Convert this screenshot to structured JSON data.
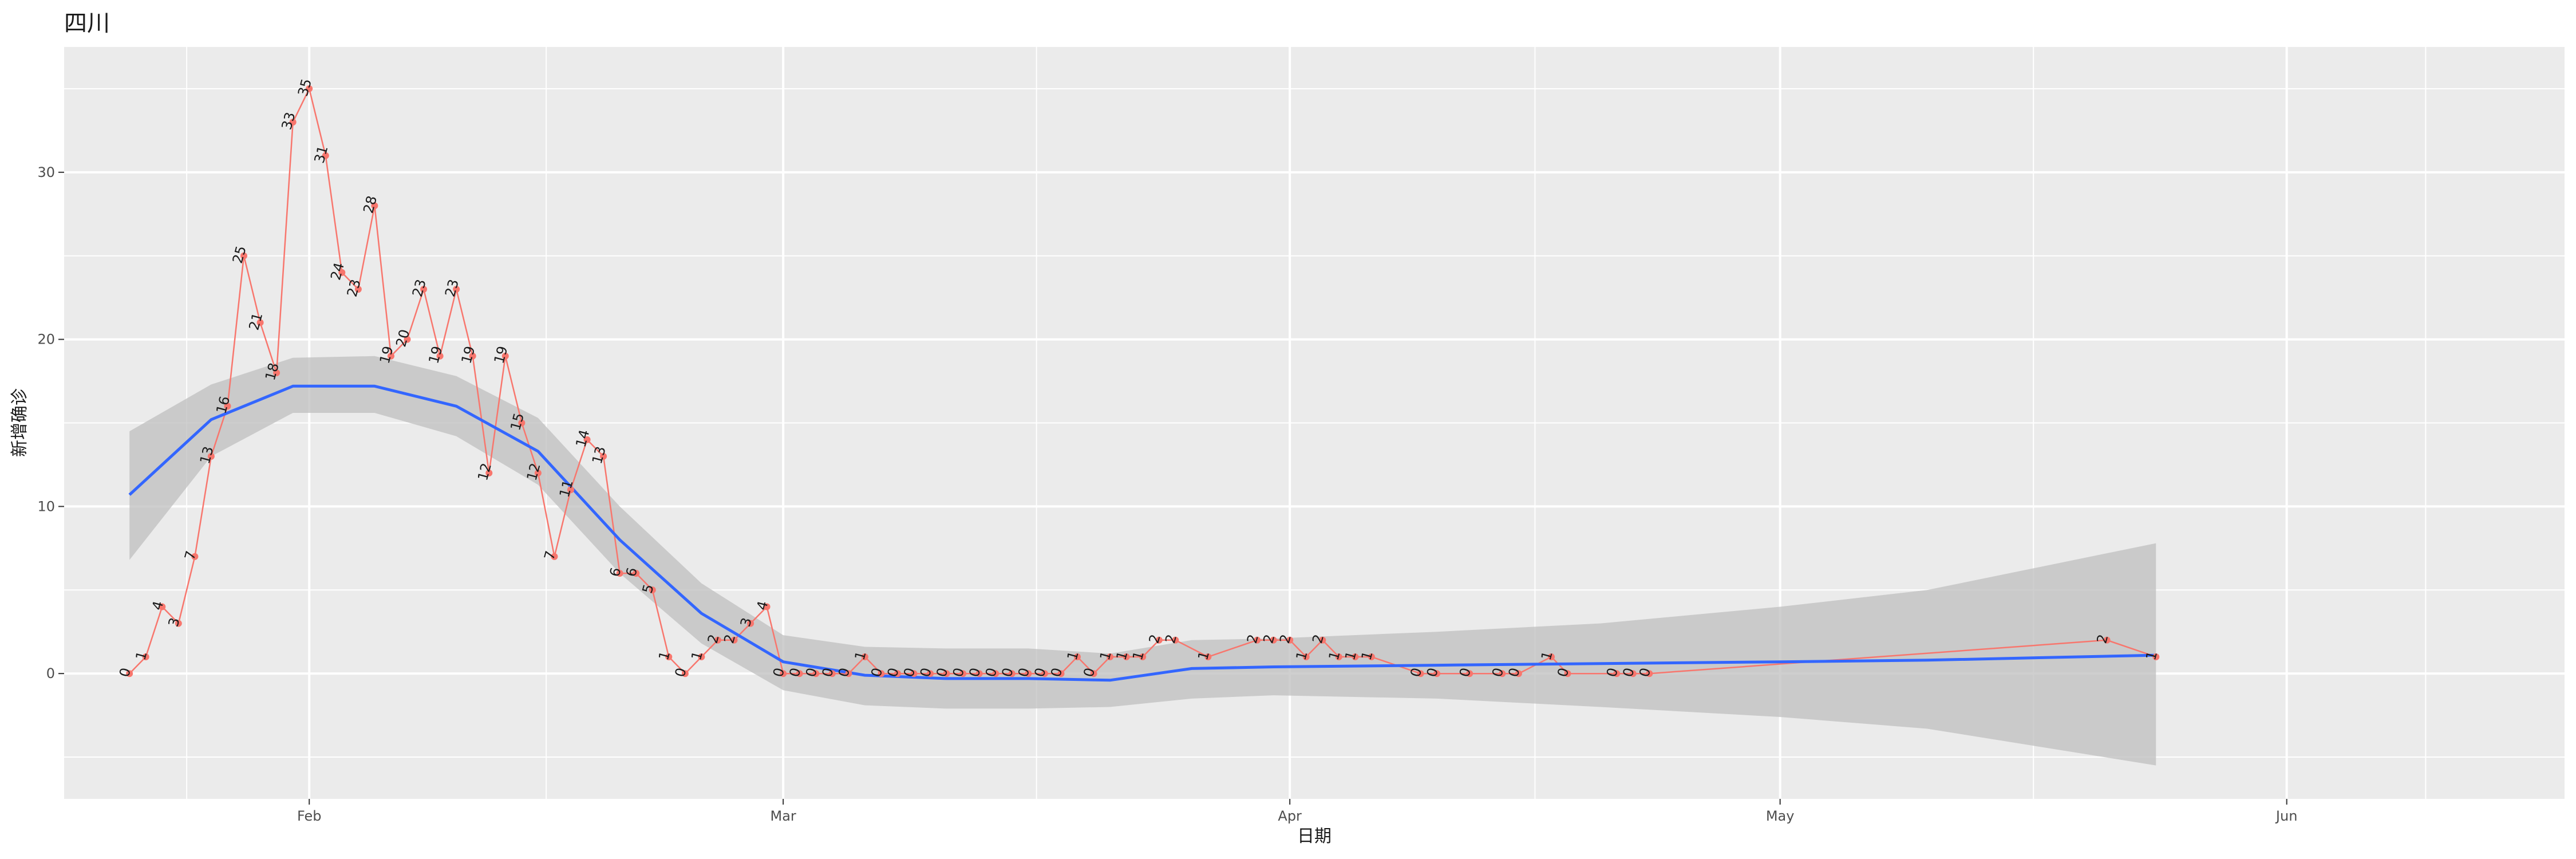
{
  "chart_data": {
    "type": "line",
    "title": "四川",
    "xlabel": "日期",
    "ylabel": "新增确诊",
    "x_ticks": [
      {
        "label": "Feb",
        "date": "2020-02-01"
      },
      {
        "label": "Mar",
        "date": "2020-03-01"
      },
      {
        "label": "Apr",
        "date": "2020-04-01"
      },
      {
        "label": "May",
        "date": "2020-05-01"
      },
      {
        "label": "Jun",
        "date": "2020-06-01"
      }
    ],
    "xlim": [
      "2020-01-17",
      "2020-06-18"
    ],
    "ylim": [
      -7.5,
      37.5
    ],
    "y_ticks": [
      0,
      10,
      20,
      30
    ],
    "grid": true,
    "colors": {
      "panel": "#EBEBEB",
      "grid": "#FFFFFF",
      "line": "#F8766D",
      "smooth": "#3366FF",
      "ribbon": "#BFBFBF"
    },
    "series": [
      {
        "x": [
          "2020-01-21",
          "2020-01-22",
          "2020-01-23",
          "2020-01-24",
          "2020-01-25",
          "2020-01-26",
          "2020-01-27",
          "2020-01-28",
          "2020-01-29",
          "2020-01-30",
          "2020-01-31",
          "2020-02-01",
          "2020-02-02",
          "2020-02-03",
          "2020-02-04",
          "2020-02-05",
          "2020-02-06",
          "2020-02-07",
          "2020-02-08",
          "2020-02-09",
          "2020-02-10",
          "2020-02-11",
          "2020-02-12",
          "2020-02-13",
          "2020-02-14",
          "2020-02-15",
          "2020-02-16",
          "2020-02-17",
          "2020-02-18",
          "2020-02-19",
          "2020-02-20",
          "2020-02-21",
          "2020-02-22",
          "2020-02-23",
          "2020-02-24",
          "2020-02-25",
          "2020-02-26",
          "2020-02-27",
          "2020-02-28",
          "2020-02-29",
          "2020-03-01",
          "2020-03-02",
          "2020-03-03",
          "2020-03-04",
          "2020-03-05",
          "2020-03-06",
          "2020-03-07",
          "2020-03-08",
          "2020-03-09",
          "2020-03-10",
          "2020-03-11",
          "2020-03-12",
          "2020-03-13",
          "2020-03-14",
          "2020-03-15",
          "2020-03-16",
          "2020-03-17",
          "2020-03-18",
          "2020-03-19",
          "2020-03-20",
          "2020-03-21",
          "2020-03-22",
          "2020-03-23",
          "2020-03-24",
          "2020-03-25",
          "2020-03-27",
          "2020-03-30",
          "2020-03-31",
          "2020-04-01",
          "2020-04-02",
          "2020-04-03",
          "2020-04-04",
          "2020-04-05",
          "2020-04-06",
          "2020-04-09",
          "2020-04-10",
          "2020-04-12",
          "2020-04-14",
          "2020-04-15",
          "2020-04-17",
          "2020-04-18",
          "2020-04-21",
          "2020-04-22",
          "2020-04-23",
          "2020-05-21",
          "2020-05-24"
        ],
        "y": [
          0,
          1,
          4,
          3,
          7,
          13,
          16,
          25,
          21,
          18,
          33,
          35,
          31,
          24,
          23,
          28,
          19,
          20,
          23,
          19,
          23,
          19,
          12,
          19,
          15,
          12,
          7,
          11,
          14,
          13,
          6,
          6,
          5,
          1,
          0,
          1,
          2,
          2,
          3,
          4,
          0,
          0,
          0,
          0,
          0,
          1,
          0,
          0,
          0,
          0,
          0,
          0,
          0,
          0,
          0,
          0,
          0,
          0,
          1,
          0,
          1,
          1,
          1,
          2,
          2,
          1,
          2,
          2,
          2,
          1,
          2,
          1,
          1,
          1,
          0,
          0,
          0,
          0,
          0,
          1,
          0,
          0,
          0,
          0,
          2,
          1
        ]
      }
    ],
    "smooth": {
      "x": [
        "2020-01-21",
        "2020-01-26",
        "2020-01-31",
        "2020-02-05",
        "2020-02-10",
        "2020-02-15",
        "2020-02-20",
        "2020-02-25",
        "2020-03-01",
        "2020-03-06",
        "2020-03-11",
        "2020-03-16",
        "2020-03-21",
        "2020-03-26",
        "2020-03-31",
        "2020-04-10",
        "2020-04-20",
        "2020-05-01",
        "2020-05-10",
        "2020-05-24"
      ],
      "y": [
        10.7,
        15.2,
        17.2,
        17.2,
        16.0,
        13.3,
        8.0,
        3.6,
        0.7,
        -0.1,
        -0.3,
        -0.3,
        -0.4,
        0.3,
        0.4,
        0.5,
        0.6,
        0.7,
        0.8,
        1.1
      ],
      "ymin": [
        6.8,
        13.0,
        15.6,
        15.6,
        14.2,
        11.3,
        6.0,
        1.8,
        -1.0,
        -1.9,
        -2.1,
        -2.1,
        -2.0,
        -1.5,
        -1.3,
        -1.5,
        -2.0,
        -2.6,
        -3.3,
        -5.5
      ],
      "ymax": [
        14.5,
        17.3,
        18.9,
        19.0,
        17.8,
        15.3,
        10.0,
        5.4,
        2.3,
        1.6,
        1.5,
        1.5,
        1.2,
        2.0,
        2.1,
        2.5,
        3.0,
        4.0,
        5.0,
        7.8
      ]
    }
  }
}
